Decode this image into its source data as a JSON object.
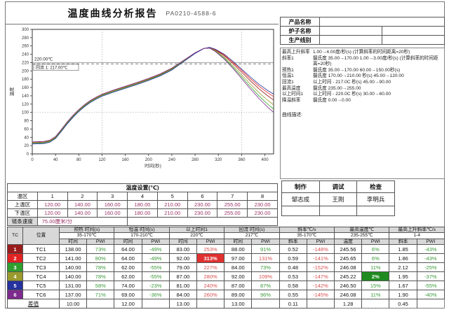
{
  "header": {
    "title": "温度曲线分析报告",
    "report_no": "PA0210-4588-6"
  },
  "chart": {
    "y_axis_label": "温度",
    "x_axis_label": "时间(秒)",
    "annotation_220": "220.00℃",
    "annotation_217": "回流 1: 217.00℃",
    "chart_data": {
      "type": "line",
      "xlabel": "时间(秒)",
      "ylabel": "温度",
      "xlim": [
        0,
        415
      ],
      "ylim": [
        0,
        300
      ],
      "x_ticks": [
        0,
        40,
        80,
        120,
        160,
        200,
        240,
        280,
        320,
        360,
        400
      ],
      "y_ticks": [
        0,
        20,
        40,
        60,
        80,
        100,
        120,
        140,
        160,
        180,
        200,
        220,
        240,
        260,
        280,
        300
      ],
      "ref_lines": {
        "solid_h": 220,
        "dashed_h": 217,
        "dotted_h": 100,
        "dotted_v": [
          120,
          360
        ]
      },
      "base_profile": [
        [
          0,
          27
        ],
        [
          20,
          28
        ],
        [
          30,
          31
        ],
        [
          40,
          40
        ],
        [
          50,
          57
        ],
        [
          60,
          75
        ],
        [
          70,
          91
        ],
        [
          80,
          105
        ],
        [
          90,
          117
        ],
        [
          100,
          127
        ],
        [
          110,
          135
        ],
        [
          120,
          142
        ],
        [
          140,
          152
        ],
        [
          160,
          161
        ],
        [
          180,
          170
        ],
        [
          200,
          180
        ],
        [
          220,
          191
        ],
        [
          240,
          205
        ],
        [
          260,
          224
        ],
        [
          280,
          243
        ],
        [
          295,
          254
        ],
        [
          305,
          256
        ],
        [
          315,
          250
        ],
        [
          330,
          236
        ],
        [
          345,
          217
        ],
        [
          360,
          196
        ],
        [
          375,
          175
        ],
        [
          390,
          155
        ],
        [
          405,
          138
        ],
        [
          415,
          128
        ]
      ],
      "series": [
        {
          "name": "TC1",
          "color": "#9b1c1c",
          "d_pre": 0,
          "d_end": 2
        },
        {
          "name": "TC2",
          "color": "#e32222",
          "d_pre": 1.2,
          "d_end": 10
        },
        {
          "name": "TC3",
          "color": "#2f9e2f",
          "d_pre": -1.5,
          "d_end": -20
        },
        {
          "name": "TC4",
          "color": "#9a9a2e",
          "d_pre": 0.6,
          "d_end": -10
        },
        {
          "name": "TC5",
          "color": "#24319e",
          "d_pre": -3,
          "d_end": 16
        },
        {
          "name": "TC6",
          "color": "#7e2a8e",
          "d_pre": 2,
          "d_end": -28
        }
      ]
    }
  },
  "info_table": {
    "rows": [
      {
        "label": "产品名称",
        "value": ""
      },
      {
        "label": "炉子名称",
        "value": "",
        "extra": ""
      },
      {
        "label": "生产线别",
        "value": "",
        "extra": ""
      }
    ]
  },
  "spec": {
    "lines": [
      {
        "label": "最高上升斜率",
        "text": "1.00→4.00度/秒(s) (计算斜率的时间距离=20秒)"
      },
      {
        "label": "斜率1",
        "text": "摄氏度 35.00→170.00  1.00→3.00度/秒(s) (计算斜率的时间距离=20秒)"
      },
      {
        "label": "预热1",
        "text": "摄氏度 35.00→170.00  60.00→150.00秒(s)"
      },
      {
        "label": "恒温1",
        "text": "摄氏度 170.00→210.00  秒(s) 45.00→120.00"
      },
      {
        "label": "回流1",
        "text": "以上时间 - 217.0C  秒(s) 45.00→90.00"
      },
      {
        "label": "最高温度",
        "text": "摄氏度 235.00→255.00"
      },
      {
        "label": "以上时间1",
        "text": "以上时间 - 220.0C  秒(s) 30.00→60.00"
      },
      {
        "label": "降温斜率",
        "text": "摄氏度 0.00→0.00"
      }
    ],
    "curve_desc_label": "曲线描述:"
  },
  "signoff": {
    "headers": [
      "制作",
      "调试",
      "检查"
    ],
    "names": [
      "邹志成",
      "王刚",
      "李明兵"
    ]
  },
  "temp_settings": {
    "title": "温度设置(℃)",
    "zone_header": "温区",
    "zones": [
      "1",
      "2",
      "3",
      "4",
      "5",
      "6",
      "7",
      "8"
    ],
    "upper_label": "上温区",
    "upper": [
      "120.00",
      "140.00",
      "160.00",
      "180.00",
      "210.00",
      "230.00",
      "255.00",
      "230.00"
    ],
    "lower_label": "下温区",
    "lower": [
      "120.00",
      "140.00",
      "160.00",
      "180.00",
      "210.00",
      "230.00",
      "255.00",
      "230.00"
    ],
    "speed_label": "链条速度",
    "speed_value": "75.00厘米/分"
  },
  "stats_table": {
    "tc_header": "TC",
    "pos_header": "位置",
    "groups": [
      {
        "title": "预热 时间(s)",
        "range": "35-170℃",
        "cols": [
          "时间",
          "PWI"
        ]
      },
      {
        "title": "恒温 时间(s)",
        "range": "170-210℃",
        "cols": [
          "时间",
          "PWI"
        ]
      },
      {
        "title": "以上时间1",
        "range": "220℃",
        "cols": [
          "时间",
          "PWI"
        ]
      },
      {
        "title": "回流 时间(s)",
        "range": "217℃",
        "cols": [
          "时间",
          "PWI"
        ]
      },
      {
        "title": "斜率℃/s",
        "range": "35-170℃",
        "cols": [
          "斜率",
          "PWI"
        ]
      },
      {
        "title": "最高温度℃",
        "range": "235-255℃",
        "cols": [
          "温度",
          "PWI"
        ]
      },
      {
        "title": "最高上升斜率℃/s",
        "range": "1-4",
        "cols": [
          "斜率",
          "PWI"
        ]
      }
    ],
    "rows": [
      {
        "num": "1",
        "color": "#9b1c1c",
        "name": "TC1",
        "values": [
          "138.00",
          "73%",
          "64.00",
          "-49%",
          "83.00",
          "253%",
          "88.00",
          "91%",
          "0.52",
          "-148%",
          "245.56",
          "6%",
          "1.85",
          "-43%"
        ]
      },
      {
        "num": "2",
        "color": "#e32222",
        "name": "TC2",
        "values": [
          "141.00",
          "80%",
          "64.00",
          "-49%",
          "92.00",
          "313%",
          "97.00",
          "131%",
          "0.59",
          "-141%",
          "245.65",
          "6%",
          "1.86",
          "-43%"
        ],
        "highlight": {
          "5": "red"
        }
      },
      {
        "num": "3",
        "color": "#2f9e2f",
        "name": "TC3",
        "values": [
          "140.00",
          "78%",
          "62.00",
          "-55%",
          "79.00",
          "227%",
          "84.00",
          "73%",
          "0.48",
          "-152%",
          "246.08",
          "11%",
          "2.12",
          "-25%"
        ]
      },
      {
        "num": "4",
        "color": "#9a9a2e",
        "name": "TC4",
        "values": [
          "140.00",
          "78%",
          "62.00",
          "-55%",
          "87.00",
          "280%",
          "92.00",
          "109%",
          "0.53",
          "-147%",
          "245.22",
          "2%",
          "1.95",
          "-37%"
        ],
        "highlight": {
          "11": "green"
        }
      },
      {
        "num": "5",
        "color": "#24319e",
        "name": "TC5",
        "values": [
          "131.00",
          "58%",
          "74.00",
          "-23%",
          "81.00",
          "240%",
          "87.00",
          "87%",
          "0.58",
          "-142%",
          "246.50",
          "15%",
          "1.67",
          "-55%"
        ]
      },
      {
        "num": "6",
        "color": "#7e2a8e",
        "name": "TC6",
        "values": [
          "137.00",
          "71%",
          "69.00",
          "-36%",
          "84.00",
          "260%",
          "89.00",
          "96%",
          "0.55",
          "-145%",
          "246.08",
          "11%",
          "1.90",
          "-40%"
        ]
      }
    ],
    "diff": {
      "label": "差值",
      "values": [
        "10.00",
        "",
        "12.00",
        "",
        "13.00",
        "",
        "13.00",
        "",
        "0.11",
        "",
        "1.28",
        "",
        "0.45",
        ""
      ]
    }
  }
}
